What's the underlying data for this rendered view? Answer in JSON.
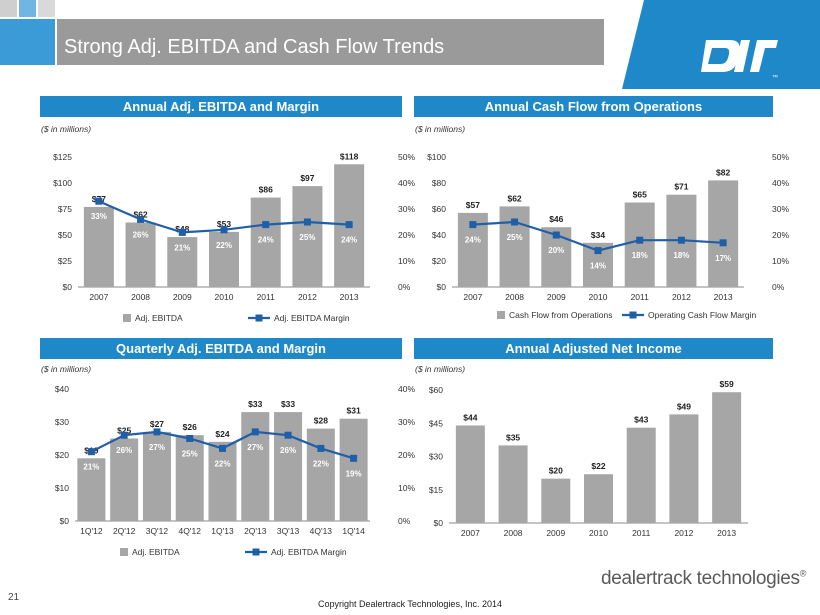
{
  "slide": {
    "title": "Strong Adj. EBITDA and Cash Flow Trends",
    "page_number": "21",
    "copyright": "Copyright Dealertrack Technologies, Inc. 2014",
    "brand": "dealertrack technologies",
    "brand_mark": "®",
    "logo_mark": "™",
    "colors": {
      "header": "#1e88c9",
      "bar": "#a6a6a6",
      "line": "#1f5fa8",
      "banner": "#9a9a9a",
      "accent_square": "#3b9bd6"
    }
  },
  "panels": [
    {
      "header": "Annual Adj. EBITDA and Margin",
      "units": "($ in millions)"
    },
    {
      "header": "Annual Cash Flow from Operations",
      "units": "($ in millions)"
    },
    {
      "header": "Quarterly Adj. EBITDA and Margin",
      "units": "($ in millions)"
    },
    {
      "header": "Annual Adjusted Net Income",
      "units": "($ in millions)"
    }
  ],
  "chart_data": [
    {
      "type": "bar",
      "categories": [
        "2007",
        "2008",
        "2009",
        "2010",
        "2011",
        "2012",
        "2013"
      ],
      "series": [
        {
          "name": "Adj. EBITDA",
          "type": "bar",
          "values": [
            77,
            62,
            48,
            53,
            86,
            97,
            118
          ],
          "labels": [
            "$77",
            "$62",
            "$48",
            "$53",
            "$86",
            "$97",
            "$118"
          ]
        },
        {
          "name": "Adj. EBITDA Margin",
          "type": "line",
          "axis": "right",
          "values": [
            33,
            26,
            21,
            22,
            24,
            25,
            24
          ],
          "labels": [
            "33%",
            "26%",
            "21%",
            "22%",
            "24%",
            "25%",
            "24%"
          ]
        }
      ],
      "yticks": [
        "$0",
        "$25",
        "$50",
        "$75",
        "$100",
        "$125"
      ],
      "ylim": [
        0,
        125
      ],
      "y2ticks": [
        "0%",
        "10%",
        "20%",
        "30%",
        "40%",
        "50%"
      ],
      "y2lim": [
        0,
        50
      ],
      "legend": "bottom"
    },
    {
      "type": "bar",
      "categories": [
        "2007",
        "2008",
        "2009",
        "2010",
        "2011",
        "2012",
        "2013"
      ],
      "series": [
        {
          "name": "Cash Flow from Operations",
          "type": "bar",
          "values": [
            57,
            62,
            46,
            34,
            65,
            71,
            82
          ],
          "labels": [
            "$57",
            "$62",
            "$46",
            "$34",
            "$65",
            "$71",
            "$82"
          ]
        },
        {
          "name": "Operating Cash Flow Margin",
          "type": "line",
          "axis": "right",
          "values": [
            24,
            25,
            20,
            14,
            18,
            18,
            17
          ],
          "labels": [
            "24%",
            "25%",
            "20%",
            "14%",
            "18%",
            "18%",
            "17%"
          ]
        }
      ],
      "yticks": [
        "$0",
        "$20",
        "$40",
        "$60",
        "$80",
        "$100"
      ],
      "ylim": [
        0,
        100
      ],
      "y2ticks": [
        "0%",
        "10%",
        "20%",
        "30%",
        "40%",
        "50%"
      ],
      "y2lim": [
        0,
        50
      ],
      "legend": "bottom"
    },
    {
      "type": "bar",
      "categories": [
        "1Q'12",
        "2Q'12",
        "3Q'12",
        "4Q'12",
        "1Q'13",
        "2Q'13",
        "3Q'13",
        "4Q'13",
        "1Q'14"
      ],
      "series": [
        {
          "name": "Adj. EBITDA",
          "type": "bar",
          "values": [
            19,
            25,
            27,
            26,
            24,
            33,
            33,
            28,
            31
          ],
          "labels": [
            "$19",
            "$25",
            "$27",
            "$26",
            "$24",
            "$33",
            "$33",
            "$28",
            "$31"
          ]
        },
        {
          "name": "Adj. EBITDA Margin",
          "type": "line",
          "axis": "right",
          "values": [
            21,
            26,
            27,
            25,
            22,
            27,
            26,
            22,
            19
          ],
          "labels": [
            "21%",
            "26%",
            "27%",
            "25%",
            "22%",
            "27%",
            "26%",
            "22%",
            "19%"
          ]
        }
      ],
      "yticks": [
        "$0",
        "$10",
        "$20",
        "$30",
        "$40"
      ],
      "ylim": [
        0,
        40
      ],
      "y2ticks": [
        "0%",
        "10%",
        "20%",
        "30%",
        "40%"
      ],
      "y2lim": [
        0,
        40
      ],
      "legend": "bottom"
    },
    {
      "type": "bar",
      "categories": [
        "2007",
        "2008",
        "2009",
        "2010",
        "2011",
        "2012",
        "2013"
      ],
      "series": [
        {
          "type": "bar",
          "values": [
            44,
            35,
            20,
            22,
            43,
            49,
            59
          ],
          "labels": [
            "$44",
            "$35",
            "$20",
            "$22",
            "$43",
            "$49",
            "$59"
          ]
        }
      ],
      "yticks": [
        "$0",
        "$15",
        "$30",
        "$45",
        "$60"
      ],
      "ylim": [
        0,
        60
      ],
      "legend": "none"
    }
  ]
}
